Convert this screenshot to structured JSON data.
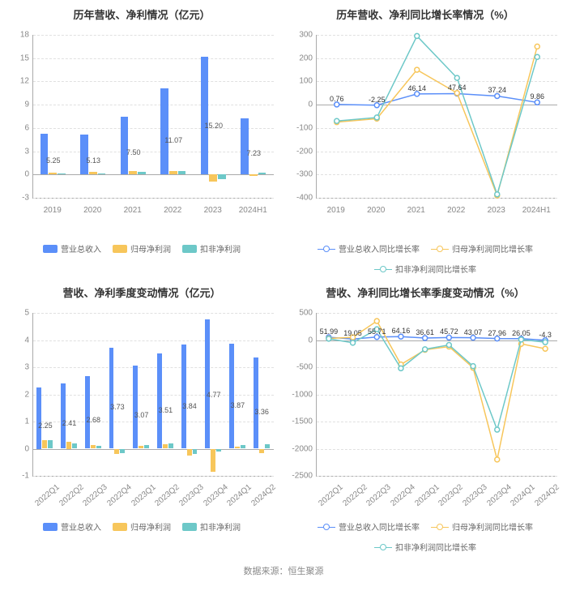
{
  "footer": "数据来源：恒生聚源",
  "colors": {
    "blue": "#5b8ff9",
    "orange": "#f7c65b",
    "teal": "#6dc8c8",
    "grid": "#e0e0e0",
    "axis": "#aaaaaa"
  },
  "panels": {
    "annual_bar": {
      "title": "历年营收、净利情况（亿元）",
      "type": "bar",
      "categories": [
        "2019",
        "2020",
        "2021",
        "2022",
        "2023",
        "2024H1"
      ],
      "ylim": [
        -3,
        18
      ],
      "ytick_step": 3,
      "series": [
        {
          "name": "营业总收入",
          "color": "#5b8ff9",
          "values": [
            5.25,
            5.13,
            7.5,
            11.07,
            15.2,
            7.23
          ],
          "show_labels": true
        },
        {
          "name": "归母净利润",
          "color": "#f7c65b",
          "values": [
            0.25,
            0.3,
            0.45,
            0.4,
            -0.9,
            -0.2
          ],
          "show_labels": false
        },
        {
          "name": "扣非净利润",
          "color": "#6dc8c8",
          "values": [
            0.1,
            0.15,
            0.35,
            0.5,
            -0.6,
            0.25
          ],
          "show_labels": false
        }
      ],
      "legend": [
        "营业总收入",
        "归母净利润",
        "扣非净利润"
      ],
      "bar_group_width": 0.65
    },
    "annual_growth": {
      "title": "历年营收、净利同比增长率情况（%）",
      "type": "line",
      "categories": [
        "2019",
        "2020",
        "2021",
        "2022",
        "2023",
        "2024H1"
      ],
      "ylim": [
        -400,
        300
      ],
      "ytick_step": 100,
      "series": [
        {
          "name": "营业总收入同比增长率",
          "color": "#5b8ff9",
          "values": [
            0.76,
            -2.25,
            46.14,
            47.64,
            37.24,
            9.86
          ],
          "show_labels": true
        },
        {
          "name": "归母净利润同比增长率",
          "color": "#f7c65b",
          "values": [
            -75,
            -60,
            150,
            50,
            -390,
            250
          ],
          "show_labels": false
        },
        {
          "name": "扣非净利润同比增长率",
          "color": "#6dc8c8",
          "values": [
            -70,
            -55,
            295,
            115,
            -385,
            205
          ],
          "show_labels": false
        }
      ],
      "legend": [
        "营业总收入同比增长率",
        "归母净利润同比增长率",
        "扣非净利润同比增长率"
      ]
    },
    "quarter_bar": {
      "title": "营收、净利季度变动情况（亿元）",
      "type": "bar",
      "categories": [
        "2022Q1",
        "2022Q2",
        "2022Q3",
        "2022Q4",
        "2023Q1",
        "2023Q2",
        "2023Q3",
        "2023Q4",
        "2024Q1",
        "2024Q2"
      ],
      "ylim": [
        -1,
        5
      ],
      "ytick_step": 1,
      "rotate_x": true,
      "series": [
        {
          "name": "营业总收入",
          "color": "#5b8ff9",
          "values": [
            2.25,
            2.41,
            2.68,
            3.73,
            3.07,
            3.51,
            3.84,
            4.77,
            3.87,
            3.36
          ],
          "show_labels": true
        },
        {
          "name": "归母净利润",
          "color": "#f7c65b",
          "values": [
            0.3,
            0.25,
            0.12,
            -0.2,
            0.1,
            0.15,
            -0.25,
            -0.85,
            0.08,
            -0.15
          ],
          "show_labels": false
        },
        {
          "name": "扣非净利润",
          "color": "#6dc8c8",
          "values": [
            0.32,
            0.2,
            0.1,
            -0.15,
            0.12,
            0.18,
            -0.2,
            -0.1,
            0.12,
            0.15
          ],
          "show_labels": false
        }
      ],
      "legend": [
        "营业总收入",
        "归母净利润",
        "扣非净利润"
      ],
      "bar_group_width": 0.7
    },
    "quarter_growth": {
      "title": "营收、净利同比增长率季度变动情况（%）",
      "type": "line",
      "categories": [
        "2022Q1",
        "2022Q2",
        "2022Q3",
        "2022Q4",
        "2023Q1",
        "2023Q2",
        "2023Q3",
        "2023Q4",
        "2024Q1",
        "2024Q2"
      ],
      "ylim": [
        -2500,
        500
      ],
      "ytick_step": 500,
      "rotate_x": true,
      "series": [
        {
          "name": "营业总收入同比增长率",
          "color": "#5b8ff9",
          "values": [
            51.99,
            19.05,
            55.71,
            64.16,
            36.61,
            45.72,
            43.07,
            27.96,
            26.05,
            -4.3
          ],
          "show_labels": true
        },
        {
          "name": "归母净利润同比增长率",
          "color": "#f7c65b",
          "values": [
            30,
            50,
            350,
            -450,
            -180,
            -120,
            -510,
            -2200,
            -70,
            -160
          ],
          "show_labels": false
        },
        {
          "name": "扣非净利润同比增长率",
          "color": "#6dc8c8",
          "values": [
            25,
            -50,
            200,
            -520,
            -170,
            -90,
            -480,
            -1650,
            10,
            -40
          ],
          "show_labels": false
        }
      ],
      "legend": [
        "营业总收入同比增长率",
        "归母净利润同比增长率",
        "扣非净利润同比增长率"
      ]
    }
  }
}
